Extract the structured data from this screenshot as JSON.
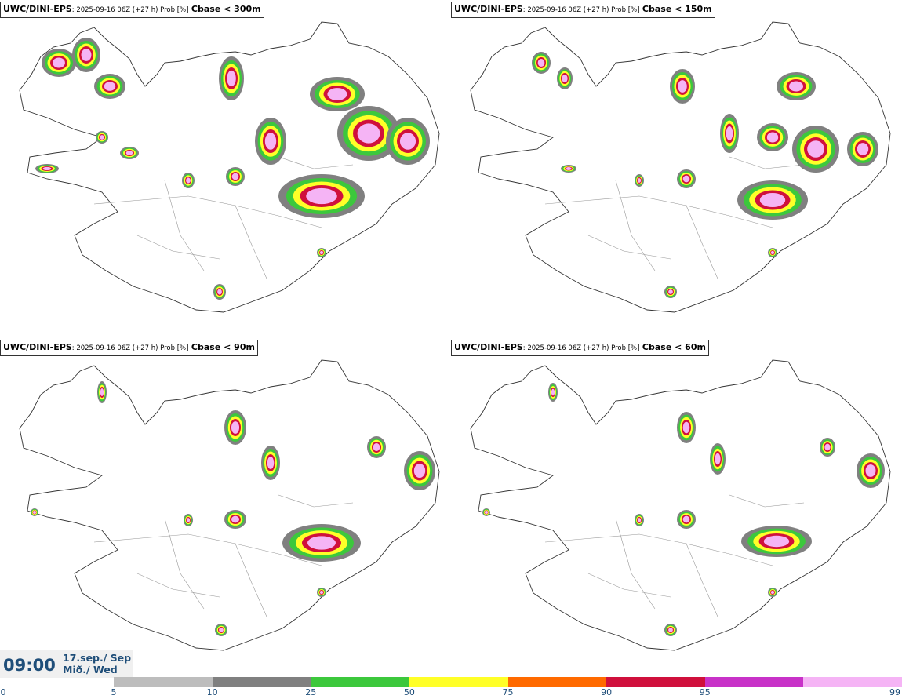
{
  "panels": [
    {
      "model": "UWC/DINI-EPS",
      "info": ": 2025-09-16 06Z (+27 h) Prob [%]",
      "threshold": "Cbase < 300m"
    },
    {
      "model": "UWC/DINI-EPS",
      "info": ": 2025-09-16 06Z (+27 h) Prob [%]",
      "threshold": "Cbase < 150m"
    },
    {
      "model": "UWC/DINI-EPS",
      "info": ": 2025-09-16 06Z (+27 h) Prob [%]",
      "threshold": "Cbase < 90m"
    },
    {
      "model": "UWC/DINI-EPS",
      "info": ": 2025-09-16 06Z (+27 h) Prob [%]",
      "threshold": "Cbase < 60m"
    }
  ],
  "valid_time": {
    "time": "09:00",
    "date_line1": "17.sep./ Sep",
    "date_line2": "Mið./ Wed"
  },
  "legend": {
    "ticks": [
      "0",
      "5",
      "10",
      "25",
      "50",
      "75",
      "90",
      "95",
      "99"
    ],
    "colors": [
      "#bdbdbd",
      "#808080",
      "#3cc83c",
      "#ffff28",
      "#ff6a00",
      "#d0103c",
      "#c832c8",
      "#f5b4f5"
    ]
  }
}
